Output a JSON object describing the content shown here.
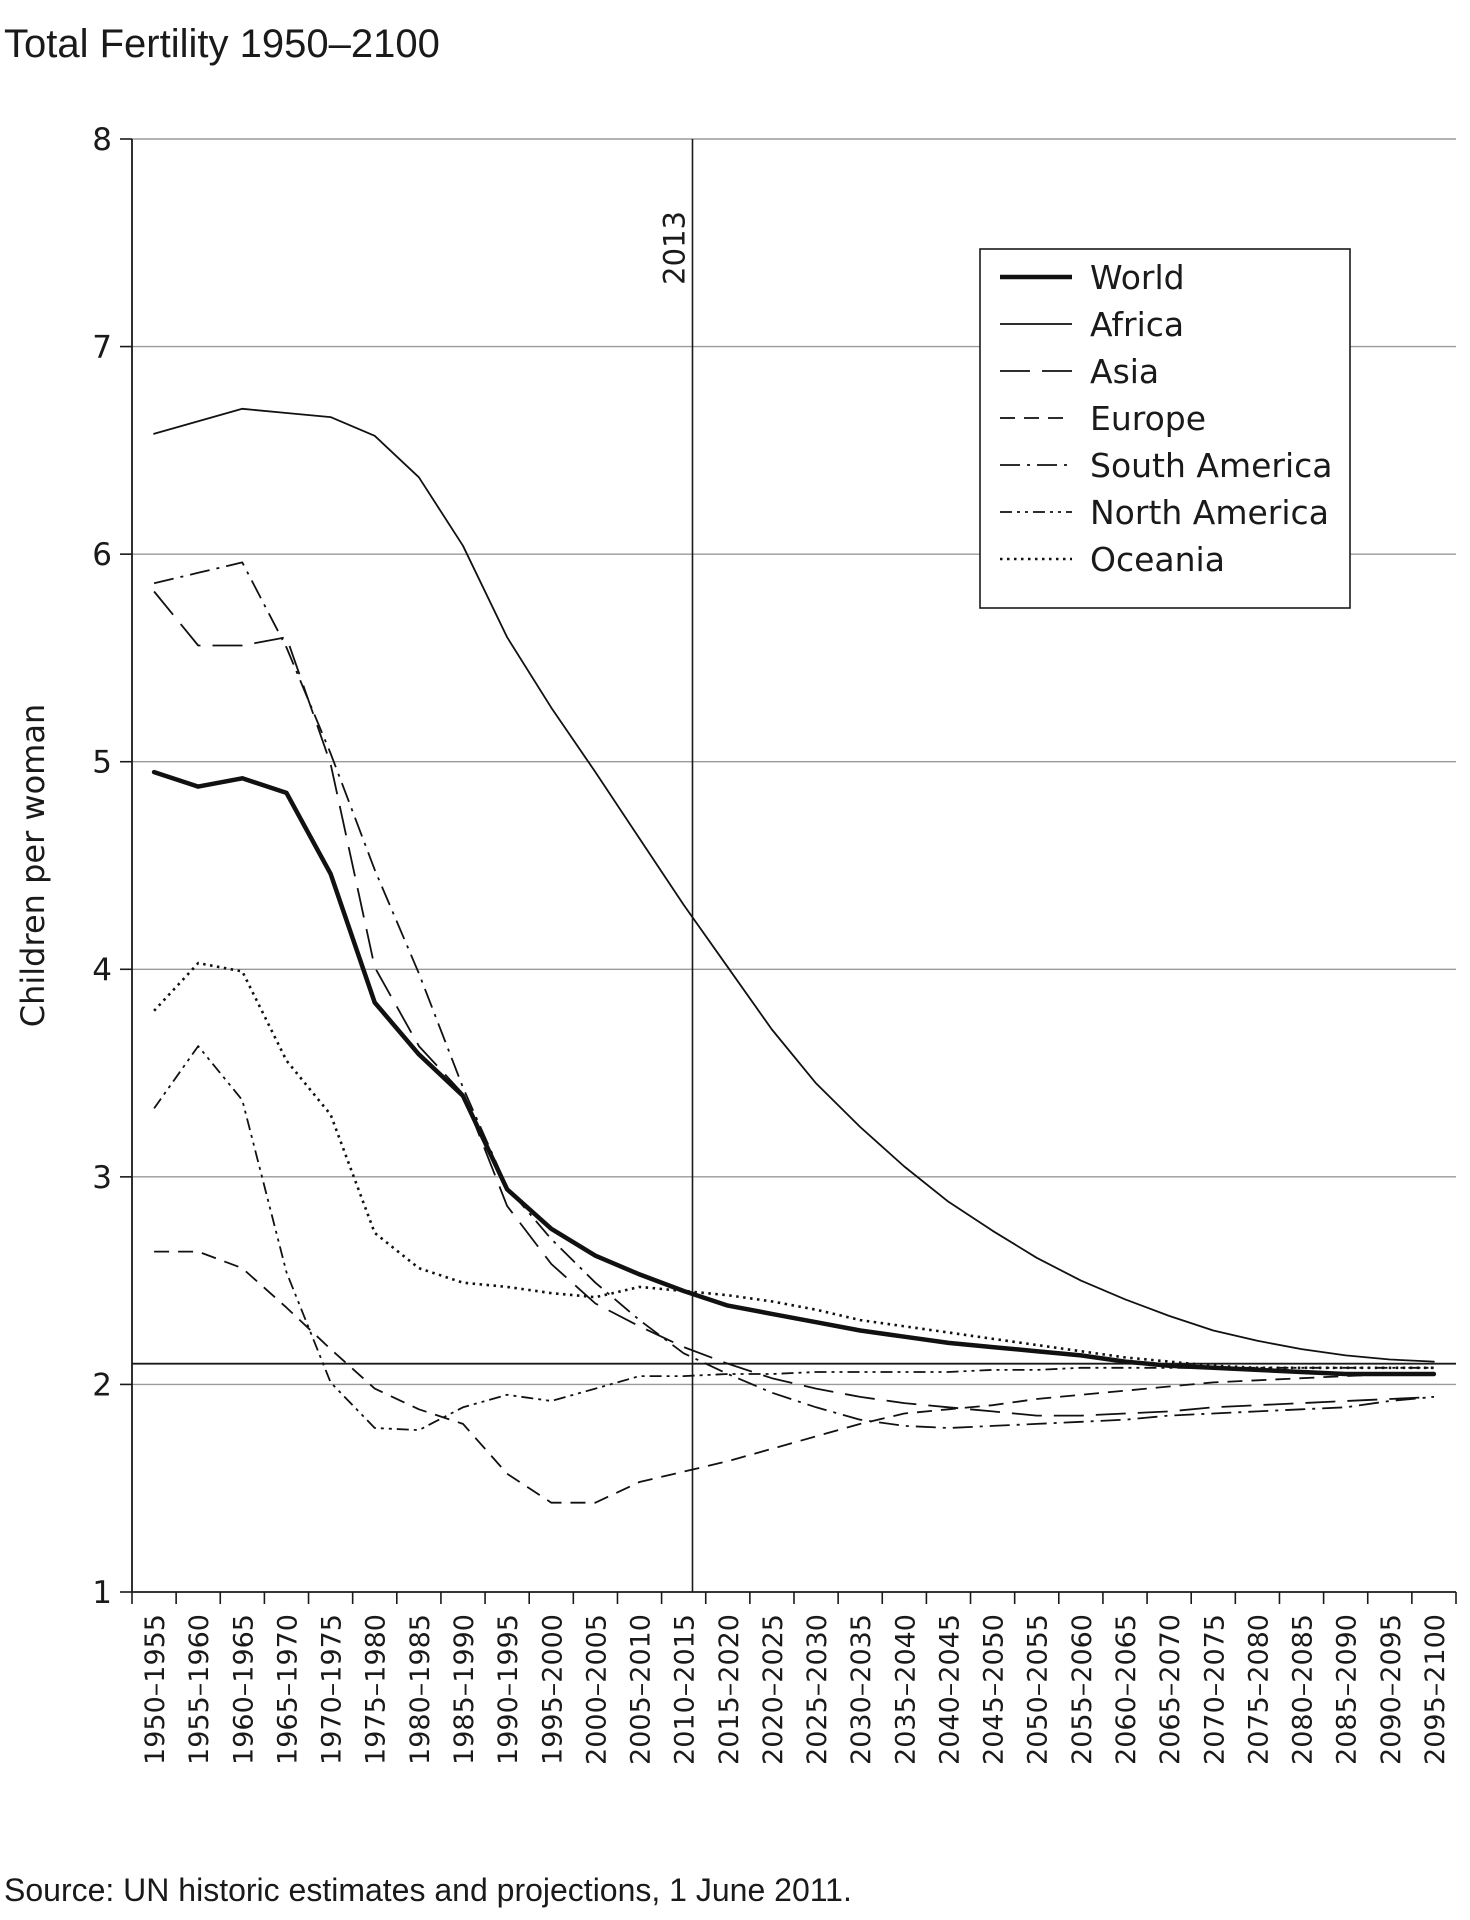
{
  "chart_data": {
    "type": "line",
    "title": "Total Fertility 1950–2100",
    "ylabel": "Children per woman",
    "xlabel": "",
    "ylim": [
      1,
      8
    ],
    "yticks": [
      1,
      2,
      3,
      4,
      5,
      6,
      7,
      8
    ],
    "grid": "horizontal",
    "legend_position": "top-right",
    "categories": [
      "1950–1955",
      "1955–1960",
      "1960–1965",
      "1965–1970",
      "1970–1975",
      "1975–1980",
      "1980–1985",
      "1985–1990",
      "1990–1995",
      "1995–2000",
      "2000–2005",
      "2005–2010",
      "2010–2015",
      "2015–2020",
      "2020–2025",
      "2025–2030",
      "2030–2035",
      "2035–2040",
      "2040–2045",
      "2045–2050",
      "2050–2055",
      "2055–2060",
      "2060–2065",
      "2065–2070",
      "2070–2075",
      "2075–2080",
      "2080–2085",
      "2085–2090",
      "2090–2095",
      "2095–2100"
    ],
    "annotations": {
      "vertical_line": {
        "label": "2013",
        "position": 12.7
      },
      "horizontal_line": {
        "value": 2.1
      }
    },
    "series": [
      {
        "name": "World",
        "style": "thick",
        "values": [
          4.95,
          4.88,
          4.92,
          4.85,
          4.46,
          3.84,
          3.59,
          3.39,
          2.94,
          2.75,
          2.62,
          2.53,
          2.45,
          2.38,
          2.34,
          2.3,
          2.26,
          2.23,
          2.2,
          2.18,
          2.16,
          2.14,
          2.11,
          2.09,
          2.08,
          2.07,
          2.06,
          2.05,
          2.05,
          2.05
        ]
      },
      {
        "name": "Africa",
        "style": "solid",
        "values": [
          6.58,
          6.64,
          6.7,
          6.68,
          6.66,
          6.57,
          6.37,
          6.04,
          5.6,
          5.26,
          4.95,
          4.63,
          4.31,
          4.01,
          3.71,
          3.45,
          3.24,
          3.05,
          2.88,
          2.74,
          2.61,
          2.5,
          2.41,
          2.33,
          2.26,
          2.21,
          2.17,
          2.14,
          2.12,
          2.11
        ]
      },
      {
        "name": "Asia",
        "style": "long-dash",
        "values": [
          5.82,
          5.56,
          5.56,
          5.6,
          4.99,
          4.01,
          3.63,
          3.4,
          2.86,
          2.58,
          2.39,
          2.28,
          2.18,
          2.1,
          2.03,
          1.98,
          1.94,
          1.91,
          1.89,
          1.87,
          1.85,
          1.85,
          1.86,
          1.87,
          1.89,
          1.9,
          1.91,
          1.92,
          1.93,
          1.94
        ]
      },
      {
        "name": "Europe",
        "style": "dash",
        "values": [
          2.64,
          2.64,
          2.56,
          2.37,
          2.17,
          1.98,
          1.88,
          1.81,
          1.57,
          1.43,
          1.43,
          1.53,
          1.58,
          1.63,
          1.69,
          1.75,
          1.81,
          1.86,
          1.88,
          1.9,
          1.93,
          1.95,
          1.97,
          1.99,
          2.01,
          2.02,
          2.03,
          2.04,
          2.05,
          2.05
        ]
      },
      {
        "name": "South America",
        "style": "dash-dot",
        "values": [
          5.86,
          5.91,
          5.96,
          5.55,
          5.04,
          4.48,
          3.98,
          3.43,
          2.95,
          2.7,
          2.49,
          2.31,
          2.15,
          2.05,
          1.96,
          1.89,
          1.83,
          1.8,
          1.79,
          1.8,
          1.81,
          1.82,
          1.83,
          1.85,
          1.86,
          1.87,
          1.88,
          1.89,
          1.92,
          1.94
        ]
      },
      {
        "name": "North America",
        "style": "dash-dot-dot",
        "values": [
          3.33,
          3.63,
          3.37,
          2.54,
          2.01,
          1.79,
          1.78,
          1.89,
          1.95,
          1.92,
          1.98,
          2.04,
          2.04,
          2.05,
          2.05,
          2.06,
          2.06,
          2.06,
          2.06,
          2.07,
          2.07,
          2.08,
          2.08,
          2.08,
          2.08,
          2.08,
          2.08,
          2.08,
          2.08,
          2.08
        ]
      },
      {
        "name": "Oceania",
        "style": "dotted",
        "values": [
          3.8,
          4.03,
          3.99,
          3.56,
          3.3,
          2.73,
          2.56,
          2.49,
          2.47,
          2.44,
          2.42,
          2.47,
          2.45,
          2.43,
          2.4,
          2.36,
          2.31,
          2.28,
          2.25,
          2.22,
          2.19,
          2.16,
          2.13,
          2.11,
          2.09,
          2.08,
          2.08,
          2.08,
          2.08,
          2.08
        ]
      }
    ],
    "source": "Source: UN historic estimates and projections, 1 June 2011."
  }
}
